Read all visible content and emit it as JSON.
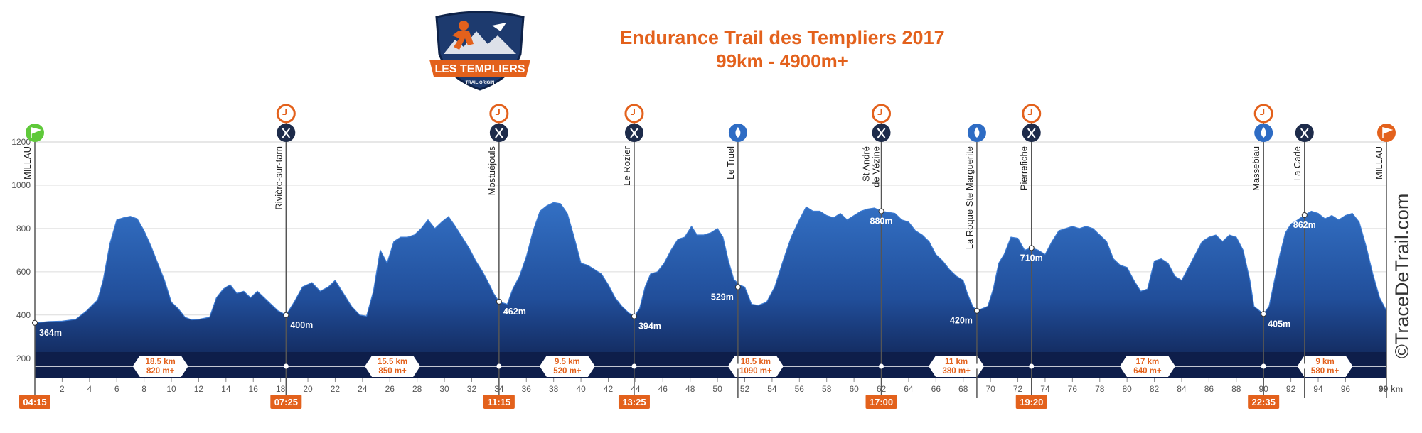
{
  "title": {
    "line1": "Endurance Trail des Templiers 2017",
    "line2": "99km - 4900m+"
  },
  "logo": {
    "text": "LES TEMPLIERS",
    "subtext": "TRAIL ORIGIN"
  },
  "watermark": "©TraceDeTrail.com",
  "colors": {
    "accent": "#e3611c",
    "profile": "#2e64b5",
    "profile_dark": "#0e1e4a",
    "icon_dark": "#1d2b4a",
    "start_flag": "#5fc93a",
    "water": "#2e6cc4"
  },
  "chart_data": {
    "type": "area",
    "title": "Endurance Trail des Templiers 2017",
    "subtitle": "99km - 4900m+",
    "xlabel": "",
    "ylabel": "",
    "x_unit_label": "99 km",
    "xlim": [
      0,
      99
    ],
    "ylim": [
      150,
      1200
    ],
    "y_ticks": [
      200,
      400,
      600,
      800,
      1000,
      1200
    ],
    "x_ticks": [
      2,
      4,
      6,
      8,
      10,
      12,
      14,
      16,
      18,
      20,
      22,
      24,
      26,
      28,
      30,
      32,
      34,
      36,
      38,
      40,
      42,
      44,
      46,
      48,
      50,
      52,
      54,
      56,
      58,
      60,
      62,
      64,
      66,
      68,
      70,
      72,
      74,
      76,
      78,
      80,
      82,
      84,
      86,
      88,
      90,
      92,
      94,
      96
    ],
    "grid": "horizontal",
    "profile": [
      [
        0,
        364
      ],
      [
        1,
        370
      ],
      [
        2,
        372
      ],
      [
        3,
        380
      ],
      [
        3.8,
        420
      ],
      [
        4.6,
        470
      ],
      [
        5,
        560
      ],
      [
        5.5,
        730
      ],
      [
        6,
        840
      ],
      [
        6.5,
        850
      ],
      [
        7,
        856
      ],
      [
        7.5,
        845
      ],
      [
        8,
        790
      ],
      [
        8.5,
        720
      ],
      [
        9,
        640
      ],
      [
        9.5,
        560
      ],
      [
        10,
        460
      ],
      [
        10.5,
        430
      ],
      [
        11,
        390
      ],
      [
        11.5,
        378
      ],
      [
        12,
        380
      ],
      [
        12.8,
        390
      ],
      [
        13.3,
        480
      ],
      [
        13.8,
        520
      ],
      [
        14.3,
        540
      ],
      [
        14.8,
        500
      ],
      [
        15.3,
        510
      ],
      [
        15.8,
        480
      ],
      [
        16.3,
        510
      ],
      [
        16.8,
        480
      ],
      [
        17.3,
        450
      ],
      [
        17.8,
        420
      ],
      [
        18.4,
        400
      ],
      [
        19,
        460
      ],
      [
        19.6,
        530
      ],
      [
        20.3,
        550
      ],
      [
        20.9,
        510
      ],
      [
        21.5,
        530
      ],
      [
        22,
        560
      ],
      [
        22.6,
        500
      ],
      [
        23.2,
        440
      ],
      [
        23.8,
        400
      ],
      [
        24.3,
        395
      ],
      [
        24.8,
        510
      ],
      [
        25.3,
        700
      ],
      [
        25.8,
        640
      ],
      [
        26.3,
        740
      ],
      [
        26.8,
        760
      ],
      [
        27.3,
        760
      ],
      [
        27.8,
        770
      ],
      [
        28.3,
        800
      ],
      [
        28.8,
        840
      ],
      [
        29.3,
        800
      ],
      [
        29.8,
        830
      ],
      [
        30.3,
        855
      ],
      [
        30.8,
        810
      ],
      [
        31.3,
        760
      ],
      [
        31.8,
        710
      ],
      [
        32.3,
        650
      ],
      [
        32.8,
        600
      ],
      [
        33.3,
        540
      ],
      [
        33.6,
        500
      ],
      [
        34,
        462
      ],
      [
        34.6,
        450
      ],
      [
        35,
        520
      ],
      [
        35.5,
        580
      ],
      [
        36,
        670
      ],
      [
        36.5,
        790
      ],
      [
        37,
        880
      ],
      [
        37.5,
        905
      ],
      [
        38,
        920
      ],
      [
        38.5,
        915
      ],
      [
        39,
        870
      ],
      [
        39.5,
        760
      ],
      [
        40,
        640
      ],
      [
        40.5,
        630
      ],
      [
        41,
        610
      ],
      [
        41.5,
        590
      ],
      [
        42,
        540
      ],
      [
        42.5,
        480
      ],
      [
        43,
        440
      ],
      [
        43.5,
        410
      ],
      [
        43.9,
        394
      ],
      [
        44.3,
        430
      ],
      [
        44.7,
        530
      ],
      [
        45.1,
        590
      ],
      [
        45.6,
        600
      ],
      [
        46.1,
        640
      ],
      [
        46.6,
        700
      ],
      [
        47.1,
        750
      ],
      [
        47.6,
        760
      ],
      [
        48.1,
        810
      ],
      [
        48.5,
        770
      ],
      [
        49,
        770
      ],
      [
        49.5,
        780
      ],
      [
        50,
        800
      ],
      [
        50.4,
        760
      ],
      [
        50.8,
        650
      ],
      [
        51.2,
        565
      ],
      [
        51.6,
        540
      ],
      [
        52,
        529
      ],
      [
        52.5,
        450
      ],
      [
        53,
        445
      ],
      [
        53.6,
        460
      ],
      [
        54.2,
        530
      ],
      [
        54.8,
        650
      ],
      [
        55.4,
        760
      ],
      [
        56,
        840
      ],
      [
        56.5,
        900
      ],
      [
        57,
        880
      ],
      [
        57.5,
        880
      ],
      [
        58,
        860
      ],
      [
        58.5,
        850
      ],
      [
        59,
        870
      ],
      [
        59.5,
        840
      ],
      [
        60,
        860
      ],
      [
        60.5,
        880
      ],
      [
        61,
        890
      ],
      [
        61.5,
        895
      ],
      [
        62,
        880
      ],
      [
        62.5,
        875
      ],
      [
        63,
        870
      ],
      [
        63.5,
        840
      ],
      [
        64,
        830
      ],
      [
        64.5,
        790
      ],
      [
        65,
        770
      ],
      [
        65.5,
        740
      ],
      [
        66,
        680
      ],
      [
        66.5,
        650
      ],
      [
        67,
        610
      ],
      [
        67.5,
        580
      ],
      [
        68,
        560
      ],
      [
        68.3,
        500
      ],
      [
        68.7,
        440
      ],
      [
        69,
        420
      ],
      [
        69.4,
        430
      ],
      [
        69.8,
        440
      ],
      [
        70.2,
        520
      ],
      [
        70.6,
        640
      ],
      [
        71,
        680
      ],
      [
        71.5,
        760
      ],
      [
        72,
        755
      ],
      [
        72.5,
        700
      ],
      [
        73,
        710
      ],
      [
        73.5,
        700
      ],
      [
        74,
        680
      ],
      [
        74.5,
        740
      ],
      [
        75,
        790
      ],
      [
        75.5,
        800
      ],
      [
        76,
        810
      ],
      [
        76.5,
        800
      ],
      [
        77,
        810
      ],
      [
        77.5,
        800
      ],
      [
        78,
        770
      ],
      [
        78.5,
        740
      ],
      [
        79,
        660
      ],
      [
        79.5,
        630
      ],
      [
        80,
        620
      ],
      [
        80.5,
        560
      ],
      [
        81,
        510
      ],
      [
        81.5,
        520
      ],
      [
        82,
        650
      ],
      [
        82.5,
        660
      ],
      [
        83,
        640
      ],
      [
        83.5,
        580
      ],
      [
        84,
        560
      ],
      [
        84.5,
        620
      ],
      [
        85,
        680
      ],
      [
        85.5,
        740
      ],
      [
        86,
        760
      ],
      [
        86.5,
        770
      ],
      [
        87,
        740
      ],
      [
        87.5,
        770
      ],
      [
        88,
        760
      ],
      [
        88.5,
        700
      ],
      [
        89,
        560
      ],
      [
        89.3,
        440
      ],
      [
        89.7,
        420
      ],
      [
        90,
        405
      ],
      [
        90.4,
        440
      ],
      [
        90.8,
        560
      ],
      [
        91.2,
        680
      ],
      [
        91.6,
        780
      ],
      [
        92,
        820
      ],
      [
        92.5,
        840
      ],
      [
        93,
        862
      ],
      [
        93.5,
        880
      ],
      [
        94,
        870
      ],
      [
        94.5,
        845
      ],
      [
        95,
        860
      ],
      [
        95.5,
        840
      ],
      [
        96,
        860
      ],
      [
        96.5,
        870
      ],
      [
        97,
        830
      ],
      [
        97.5,
        720
      ],
      [
        98,
        590
      ],
      [
        98.5,
        480
      ],
      [
        99,
        420
      ]
    ],
    "waypoints": [
      {
        "name": "MILLAU",
        "km": 0,
        "alt": 364,
        "alt_label": "364m",
        "icons": [
          "start-flag"
        ],
        "time": "04:15"
      },
      {
        "name": "Rivière-sur-tarn",
        "km": 18.4,
        "alt": 400,
        "alt_label": "400m",
        "icons": [
          "clock",
          "food"
        ],
        "time": "07:25"
      },
      {
        "name": "Mostuéjouls",
        "km": 34,
        "alt": 462,
        "alt_label": "462m",
        "icons": [
          "clock",
          "food"
        ],
        "time": "11:15"
      },
      {
        "name": "Le Rozier",
        "km": 43.9,
        "alt": 394,
        "alt_label": "394m",
        "icons": [
          "clock",
          "food"
        ],
        "time": "13:25"
      },
      {
        "name": "Le Truel",
        "km": 51.5,
        "alt": 529,
        "alt_label": "529m",
        "icons": [
          "water"
        ],
        "time": ""
      },
      {
        "name": "St André",
        "name2": "de Vézine",
        "km": 62,
        "alt": 880,
        "alt_label": "880m",
        "icons": [
          "clock",
          "food"
        ],
        "time": "17:00"
      },
      {
        "name": "La Roque Ste Marguerite",
        "km": 69,
        "alt": 420,
        "alt_label": "420m",
        "icons": [
          "water"
        ],
        "time": ""
      },
      {
        "name": "Pierrefiche",
        "km": 73,
        "alt": 710,
        "alt_label": "710m",
        "icons": [
          "clock",
          "food"
        ],
        "time": "19:20"
      },
      {
        "name": "Massebiau",
        "km": 90,
        "alt": 405,
        "alt_label": "405m",
        "icons": [
          "clock",
          "water"
        ],
        "time": "22:35"
      },
      {
        "name": "La Cade",
        "km": 93,
        "alt": 862,
        "alt_label": "862m",
        "icons": [
          "food"
        ],
        "time": ""
      },
      {
        "name": "MILLAU",
        "km": 99,
        "alt": 420,
        "alt_label": "",
        "icons": [
          "finish-flag"
        ],
        "time": ""
      }
    ],
    "segments": [
      {
        "km": 9.2,
        "distance": "18.5 km",
        "elevation": "820 m+"
      },
      {
        "km": 26.2,
        "distance": "15.5 km",
        "elevation": "850 m+"
      },
      {
        "km": 39,
        "distance": "9.5 km",
        "elevation": "520 m+"
      },
      {
        "km": 52.8,
        "distance": "18.5 km",
        "elevation": "1090 m+"
      },
      {
        "km": 67.5,
        "distance": "11 km",
        "elevation": "380 m+"
      },
      {
        "km": 81.5,
        "distance": "17 km",
        "elevation": "640 m+"
      },
      {
        "km": 94.5,
        "distance": "9 km",
        "elevation": "580 m+"
      }
    ]
  }
}
